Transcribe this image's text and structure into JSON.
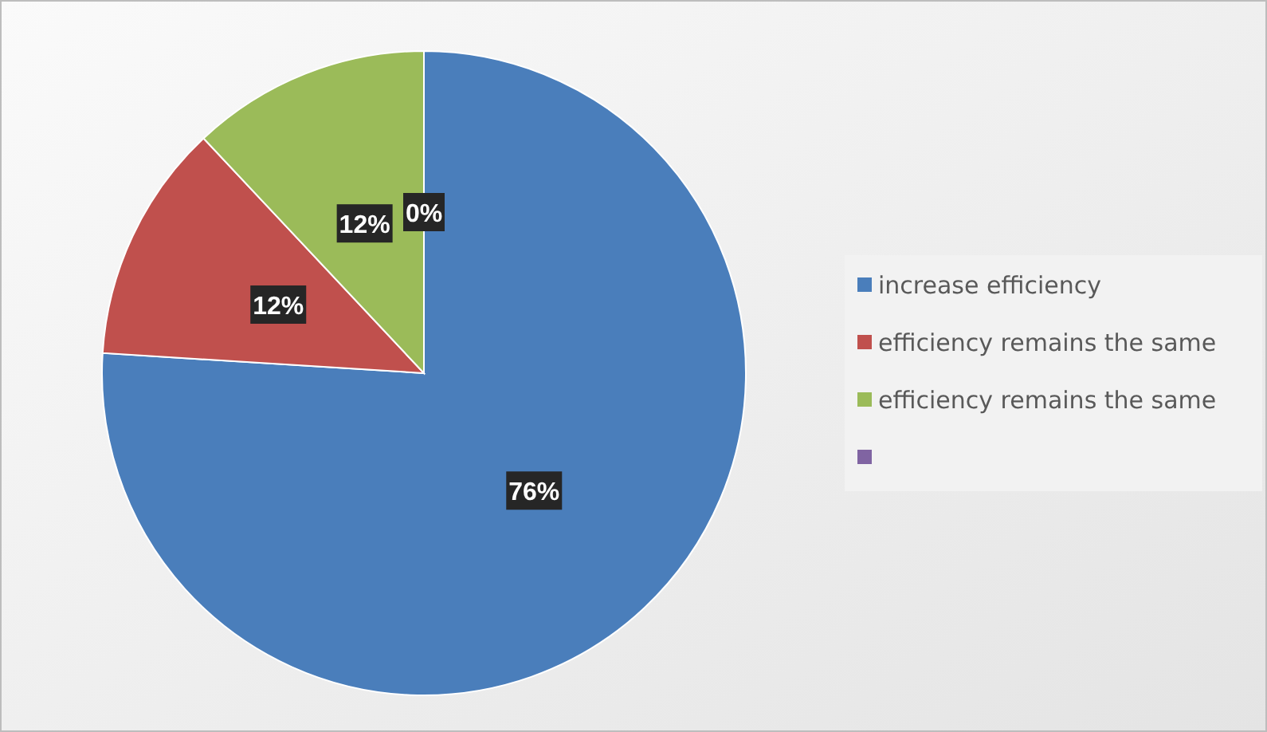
{
  "chart_data": {
    "type": "pie",
    "categories": [
      "increase efficiency",
      "efficiency remains the same",
      "efficiency remains the same",
      null
    ],
    "values": [
      76,
      12,
      12,
      0
    ],
    "colors": [
      "#4a7ebb",
      "#c0504d",
      "#9bbb59",
      "#8064a2"
    ],
    "value_labels": [
      "76%",
      "12%",
      "12%",
      "0%"
    ],
    "legend": "right"
  }
}
